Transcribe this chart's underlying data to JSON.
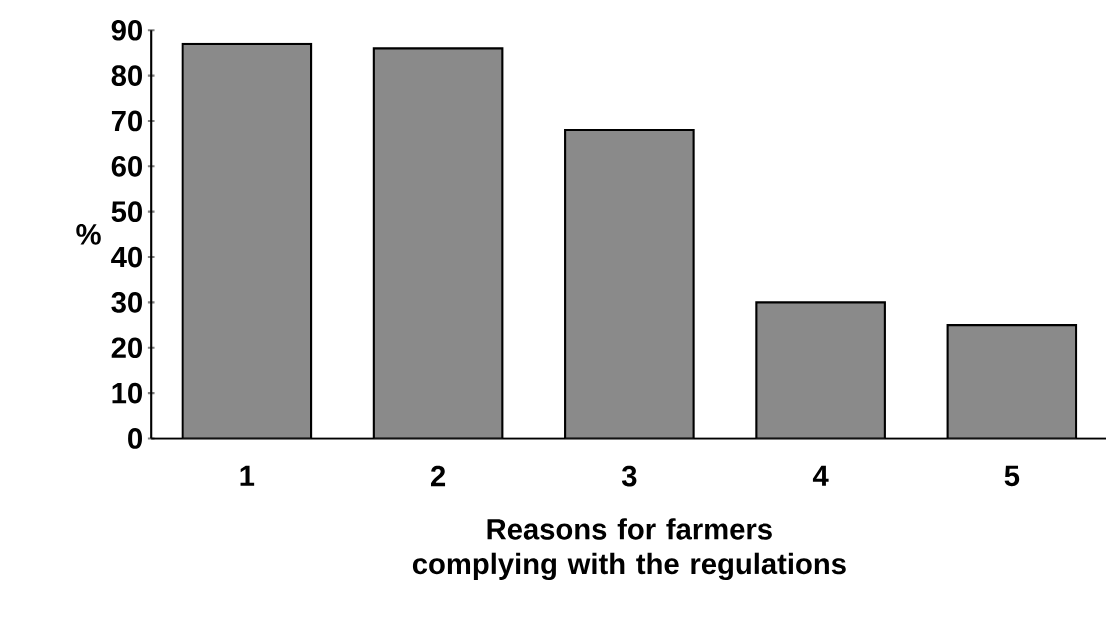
{
  "chart_data": {
    "type": "bar",
    "xlabel": "Reasons for farmers complying with the regulations",
    "ylabel": "%",
    "categories": [
      "1",
      "2",
      "3",
      "4",
      "5"
    ],
    "values": [
      87,
      86,
      68,
      30,
      25
    ],
    "color": "#8a8a8a",
    "ylim": [
      0,
      90
    ],
    "yticks": [
      0,
      10,
      20,
      30,
      40,
      50,
      60,
      70,
      80,
      90
    ],
    "grid": false
  }
}
